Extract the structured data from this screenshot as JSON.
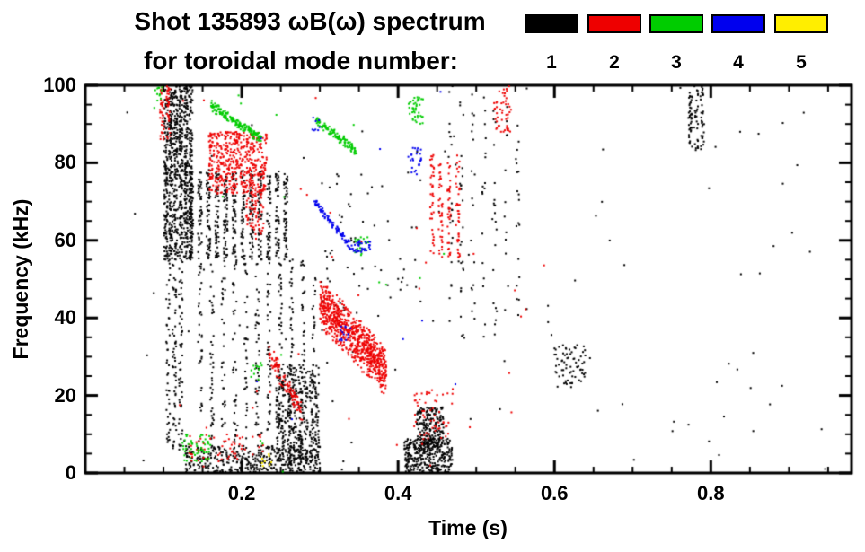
{
  "title": {
    "line1": "Shot 135893 ωB(ω) spectrum",
    "line2": "for toroidal mode number:"
  },
  "legend": {
    "entries": [
      {
        "label": "1",
        "color": "#000000"
      },
      {
        "label": "2",
        "color": "#ee0000"
      },
      {
        "label": "3",
        "color": "#00cc00"
      },
      {
        "label": "4",
        "color": "#0000ee"
      },
      {
        "label": "5",
        "color": "#ffee00"
      }
    ]
  },
  "chart_data": {
    "type": "scatter",
    "title": "Shot 135893 ωB(ω) spectrum for toroidal mode number",
    "xlabel": "Time (s)",
    "ylabel": "Frequency (kHz)",
    "xlim": [
      0,
      0.98
    ],
    "ylim": [
      0,
      100
    ],
    "grid": false,
    "legend_position": "top-right",
    "xticks": {
      "major": [
        0.2,
        0.4,
        0.6,
        0.8
      ],
      "labels": [
        "0.2",
        "0.4",
        "0.6",
        "0.8"
      ],
      "minor_step": 0.05
    },
    "yticks": {
      "major": [
        0,
        20,
        40,
        60,
        80,
        100
      ],
      "labels": [
        "0",
        "20",
        "40",
        "60",
        "80",
        "100"
      ],
      "minor_step": 5
    },
    "series": [
      {
        "name": "mode 1",
        "color": "#000000",
        "clusters": [
          {
            "style": "vlines",
            "t": [
              0.1,
              0.138
            ],
            "f": [
              55,
              100
            ],
            "lines": 6,
            "n": 900
          },
          {
            "style": "vlines",
            "t": [
              0.102,
              0.126
            ],
            "f": [
              6,
              55
            ],
            "lines": 3,
            "n": 160
          },
          {
            "style": "vlines",
            "t": [
              0.13,
              0.262
            ],
            "f": [
              55,
              78
            ],
            "lines": 12,
            "n": 650
          },
          {
            "style": "vlines",
            "t": [
              0.14,
              0.3
            ],
            "f": [
              8,
              55
            ],
            "lines": 11,
            "n": 420
          },
          {
            "style": "uniform",
            "t": [
              0.128,
              0.3
            ],
            "f": [
              0,
              7
            ],
            "n": 380
          },
          {
            "style": "vlines",
            "t": [
              0.243,
              0.3
            ],
            "f": [
              2,
              28
            ],
            "lines": 8,
            "n": 450
          },
          {
            "style": "uniform",
            "t": [
              0.408,
              0.47
            ],
            "f": [
              0,
              9
            ],
            "n": 330
          },
          {
            "style": "uniform",
            "t": [
              0.424,
              0.458
            ],
            "f": [
              5,
              17
            ],
            "n": 220
          },
          {
            "style": "vlines",
            "t": [
              0.46,
              0.56
            ],
            "f": [
              35,
              100
            ],
            "lines": 7,
            "n": 130
          },
          {
            "style": "uniform",
            "t": [
              0.6,
              0.64
            ],
            "f": [
              22,
              33
            ],
            "n": 70
          },
          {
            "style": "vlines",
            "t": [
              0.77,
              0.793
            ],
            "f": [
              83,
              100
            ],
            "lines": 3,
            "n": 100
          },
          {
            "style": "uniform",
            "t": [
              0.3,
              0.43
            ],
            "f": [
              40,
              78
            ],
            "n": 60
          },
          {
            "style": "uniform",
            "t": [
              0.05,
              0.95
            ],
            "f": [
              0,
              100
            ],
            "n": 110
          }
        ]
      },
      {
        "name": "mode 2",
        "color": "#ee0000",
        "clusters": [
          {
            "style": "vlines",
            "t": [
              0.094,
              0.11
            ],
            "f": [
              86,
              100
            ],
            "lines": 2,
            "n": 70
          },
          {
            "style": "uniform",
            "t": [
              0.158,
              0.232
            ],
            "f": [
              72,
              88
            ],
            "n": 480
          },
          {
            "style": "uniform",
            "t": [
              0.205,
              0.228
            ],
            "f": [
              60,
              73
            ],
            "n": 70
          },
          {
            "style": "slope",
            "t": [
              0.235,
              0.276
            ],
            "f": [
              31,
              16
            ],
            "jitter": 3,
            "n": 100
          },
          {
            "style": "slope",
            "t": [
              0.3,
              0.385
            ],
            "f": [
              44,
              26
            ],
            "jitter": 7,
            "n": 780
          },
          {
            "style": "vlines",
            "t": [
              0.438,
              0.482
            ],
            "f": [
              55,
              82
            ],
            "lines": 4,
            "n": 150
          },
          {
            "style": "uniform",
            "t": [
              0.52,
              0.545
            ],
            "f": [
              88,
              100
            ],
            "n": 50
          },
          {
            "style": "uniform",
            "t": [
              0.13,
              0.23
            ],
            "f": [
              3,
              10
            ],
            "n": 60
          },
          {
            "style": "uniform",
            "t": [
              0.42,
              0.47
            ],
            "f": [
              8,
              22
            ],
            "n": 55
          },
          {
            "style": "uniform",
            "t": [
              0.1,
              0.6
            ],
            "f": [
              0,
              100
            ],
            "n": 35
          }
        ]
      },
      {
        "name": "mode 3",
        "color": "#00cc00",
        "clusters": [
          {
            "style": "slope",
            "t": [
              0.16,
              0.226
            ],
            "f": [
              95,
              86
            ],
            "jitter": 1.5,
            "n": 170
          },
          {
            "style": "slope",
            "t": [
              0.295,
              0.347
            ],
            "f": [
              91,
              83
            ],
            "jitter": 1.5,
            "n": 120
          },
          {
            "style": "uniform",
            "t": [
              0.413,
              0.432
            ],
            "f": [
              90,
              97
            ],
            "n": 40
          },
          {
            "style": "uniform",
            "t": [
              0.345,
              0.362
            ],
            "f": [
              56,
              61
            ],
            "n": 22
          },
          {
            "style": "uniform",
            "t": [
              0.123,
              0.16
            ],
            "f": [
              3,
              10
            ],
            "n": 55
          },
          {
            "style": "uniform",
            "t": [
              0.21,
              0.226
            ],
            "f": [
              24,
              29
            ],
            "n": 12
          },
          {
            "style": "uniform",
            "t": [
              0.088,
              0.1
            ],
            "f": [
              94,
              100
            ],
            "n": 12
          },
          {
            "style": "uniform",
            "t": [
              0.1,
              0.5
            ],
            "f": [
              0,
              100
            ],
            "n": 14
          }
        ]
      },
      {
        "name": "mode 4",
        "color": "#0000ee",
        "clusters": [
          {
            "style": "slope",
            "t": [
              0.293,
              0.337
            ],
            "f": [
              70,
              59
            ],
            "jitter": 1.2,
            "n": 85
          },
          {
            "style": "uniform",
            "t": [
              0.337,
              0.366
            ],
            "f": [
              57,
              60
            ],
            "n": 40
          },
          {
            "style": "uniform",
            "t": [
              0.325,
              0.341
            ],
            "f": [
              34,
              38
            ],
            "n": 15
          },
          {
            "style": "uniform",
            "t": [
              0.413,
              0.43
            ],
            "f": [
              77,
              84
            ],
            "n": 25
          },
          {
            "style": "uniform",
            "t": [
              0.288,
              0.3
            ],
            "f": [
              88,
              92
            ],
            "n": 8
          },
          {
            "style": "uniform",
            "t": [
              0.15,
              0.5
            ],
            "f": [
              0,
              100
            ],
            "n": 8
          }
        ]
      },
      {
        "name": "mode 5",
        "color": "#ffee00",
        "clusters": [
          {
            "style": "uniform",
            "t": [
              0.224,
              0.24
            ],
            "f": [
              1,
              5
            ],
            "n": 8
          }
        ]
      }
    ]
  }
}
